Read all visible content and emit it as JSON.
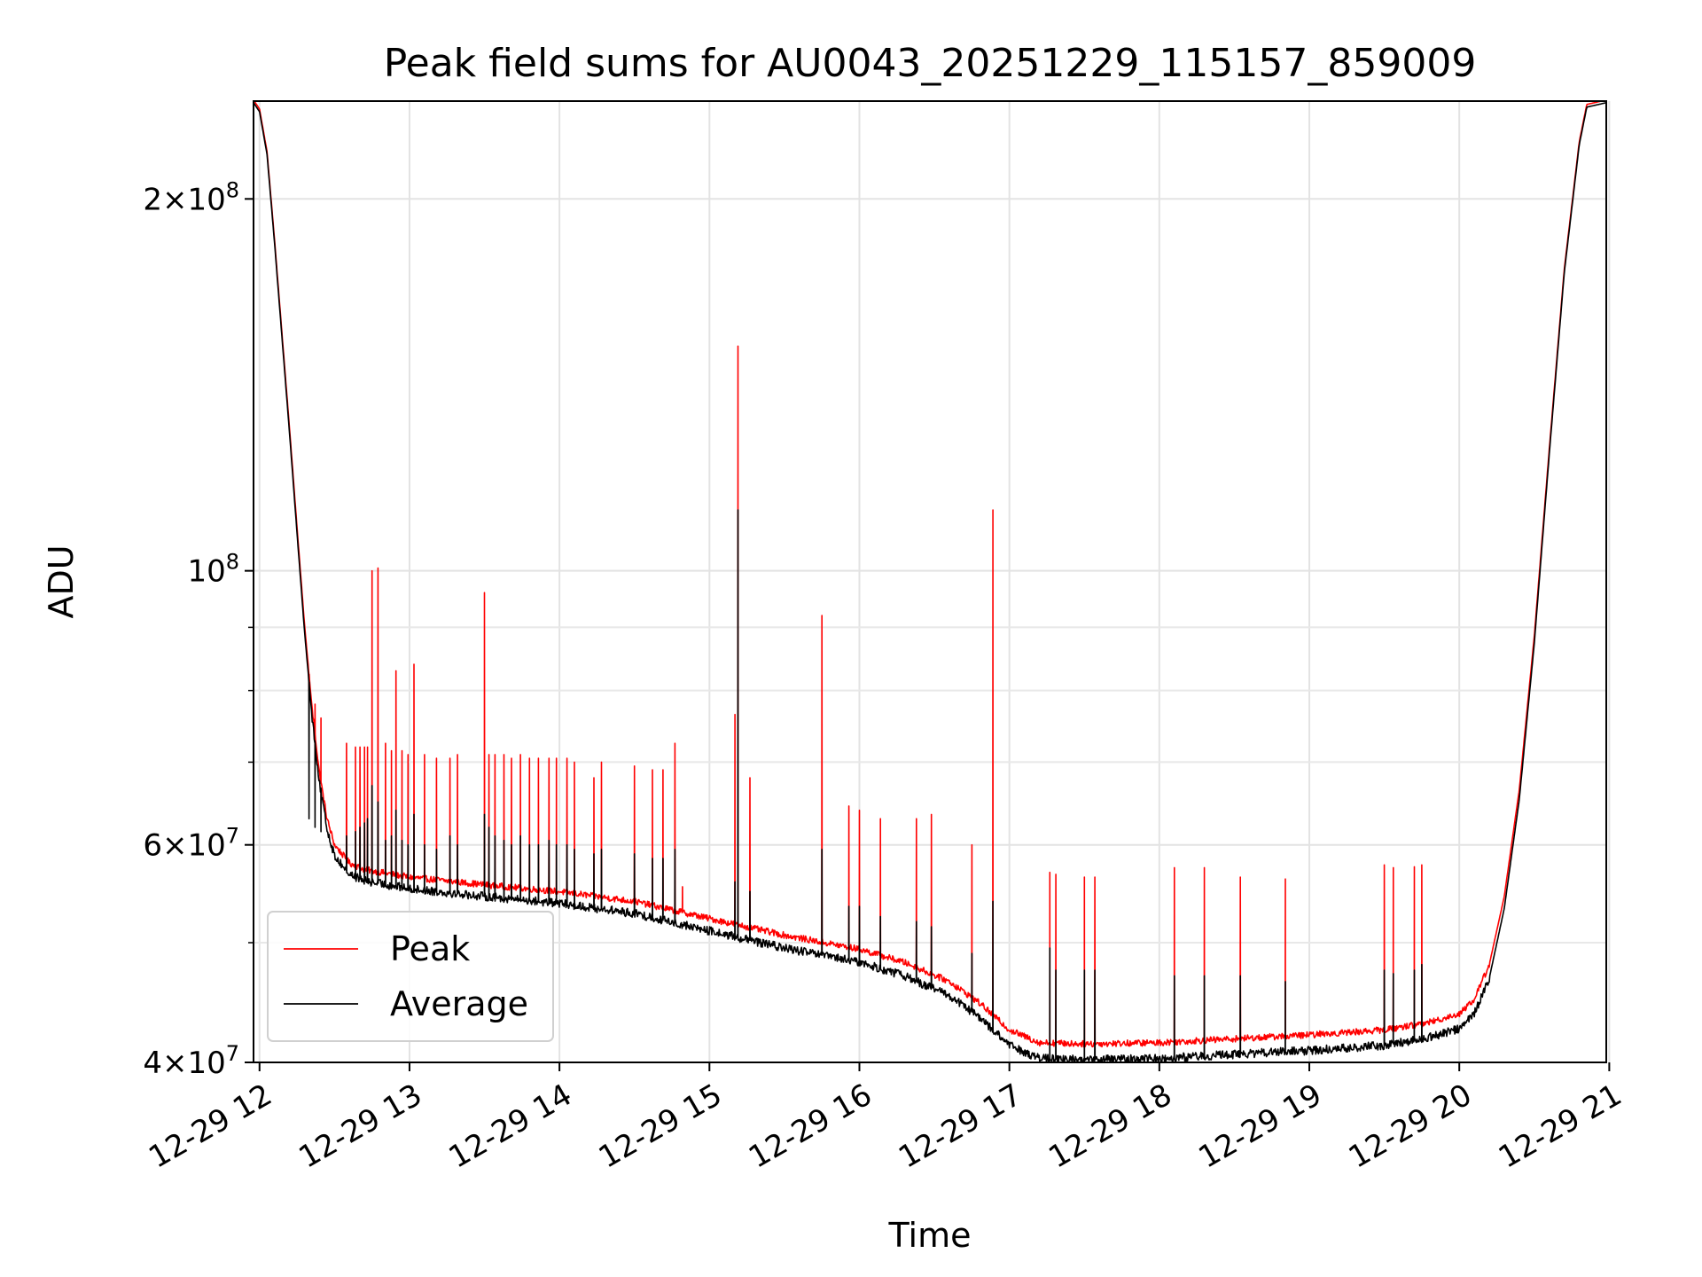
{
  "chart_data": {
    "type": "line",
    "title": "Peak field sums for AU0043_20251229_115157_859009",
    "xlabel": "Time",
    "ylabel": "ADU",
    "yscale": "log",
    "grid": true,
    "legend_position": "lower-left",
    "xlim": [
      11.96,
      20.98
    ],
    "ylim": [
      40000000,
      240000000
    ],
    "x_ticks": [
      {
        "value": 12,
        "label": "12-29 12"
      },
      {
        "value": 13,
        "label": "12-29 13"
      },
      {
        "value": 14,
        "label": "12-29 14"
      },
      {
        "value": 15,
        "label": "12-29 15"
      },
      {
        "value": 16,
        "label": "12-29 16"
      },
      {
        "value": 17,
        "label": "12-29 17"
      },
      {
        "value": 18,
        "label": "12-29 18"
      },
      {
        "value": 19,
        "label": "12-29 19"
      },
      {
        "value": 20,
        "label": "12-29 20"
      },
      {
        "value": 21,
        "label": "12-29 21"
      }
    ],
    "y_major_ticks": [
      {
        "value": 40000000,
        "base": "4",
        "exp": "7"
      },
      {
        "value": 60000000,
        "base": "6",
        "exp": "7"
      },
      {
        "value": 100000000,
        "base": "",
        "exp": "8"
      },
      {
        "value": 200000000,
        "base": "2",
        "exp": "8"
      }
    ],
    "y_minor_gridlines": [
      50000000,
      70000000,
      80000000,
      90000000
    ],
    "baseline": [
      [
        11.96,
        240000000
      ],
      [
        12.0,
        236000000
      ],
      [
        12.05,
        218000000
      ],
      [
        12.1,
        185000000
      ],
      [
        12.15,
        155000000
      ],
      [
        12.2,
        130000000
      ],
      [
        12.25,
        108000000
      ],
      [
        12.3,
        90000000
      ],
      [
        12.35,
        77000000
      ],
      [
        12.4,
        68000000
      ],
      [
        12.45,
        62500000
      ],
      [
        12.5,
        59500000
      ],
      [
        12.6,
        57500000
      ],
      [
        12.7,
        56800000
      ],
      [
        13.0,
        56000000
      ],
      [
        13.5,
        55200000
      ],
      [
        14.0,
        54500000
      ],
      [
        14.5,
        53500000
      ],
      [
        15.0,
        51800000
      ],
      [
        15.5,
        50200000
      ],
      [
        16.0,
        48900000
      ],
      [
        16.3,
        47700000
      ],
      [
        16.6,
        46000000
      ],
      [
        16.8,
        44200000
      ],
      [
        17.0,
        42000000
      ],
      [
        17.2,
        41000000
      ],
      [
        17.5,
        40900000
      ],
      [
        18.0,
        41000000
      ],
      [
        18.5,
        41300000
      ],
      [
        19.0,
        41600000
      ],
      [
        19.5,
        42000000
      ],
      [
        19.8,
        42600000
      ],
      [
        20.0,
        43300000
      ],
      [
        20.1,
        44500000
      ],
      [
        20.2,
        47500000
      ],
      [
        20.3,
        54000000
      ],
      [
        20.4,
        66000000
      ],
      [
        20.5,
        88000000
      ],
      [
        20.6,
        125000000
      ],
      [
        20.7,
        175000000
      ],
      [
        20.8,
        222000000
      ],
      [
        20.85,
        238000000
      ],
      [
        20.98,
        240000000
      ]
    ],
    "series": [
      {
        "name": "Peak",
        "color": "#ff0000",
        "offset": 500000,
        "noise": 0.006,
        "spikes": [
          [
            12.33,
            80000000
          ],
          [
            12.37,
            78000000
          ],
          [
            12.41,
            76000000
          ],
          [
            12.58,
            72500000
          ],
          [
            12.64,
            72000000
          ],
          [
            12.67,
            72000000
          ],
          [
            12.7,
            72000000
          ],
          [
            12.72,
            72000000
          ],
          [
            12.75,
            100000000
          ],
          [
            12.79,
            100500000
          ],
          [
            12.84,
            72500000
          ],
          [
            12.88,
            71500000
          ],
          [
            12.91,
            83000000
          ],
          [
            12.95,
            71500000
          ],
          [
            12.99,
            71000000
          ],
          [
            13.03,
            84000000
          ],
          [
            13.1,
            71000000
          ],
          [
            13.18,
            70500000
          ],
          [
            13.27,
            70500000
          ],
          [
            13.32,
            71000000
          ],
          [
            13.5,
            96000000
          ],
          [
            13.53,
            71000000
          ],
          [
            13.57,
            71000000
          ],
          [
            13.63,
            71000000
          ],
          [
            13.68,
            70500000
          ],
          [
            13.74,
            71000000
          ],
          [
            13.8,
            70500000
          ],
          [
            13.86,
            70500000
          ],
          [
            13.93,
            70500000
          ],
          [
            13.98,
            70500000
          ],
          [
            14.05,
            70500000
          ],
          [
            14.1,
            70000000
          ],
          [
            14.23,
            68000000
          ],
          [
            14.28,
            70000000
          ],
          [
            14.5,
            69500000
          ],
          [
            14.62,
            69000000
          ],
          [
            14.69,
            69000000
          ],
          [
            14.77,
            72500000
          ],
          [
            14.82,
            55500000
          ],
          [
            15.17,
            76500000
          ],
          [
            15.19,
            152000000
          ],
          [
            15.27,
            68000000
          ],
          [
            15.75,
            92000000
          ],
          [
            15.93,
            64500000
          ],
          [
            16.0,
            64000000
          ],
          [
            16.14,
            63000000
          ],
          [
            16.38,
            63000000
          ],
          [
            16.48,
            63500000
          ],
          [
            16.75,
            60000000
          ],
          [
            16.89,
            112000000
          ],
          [
            17.27,
            57000000
          ],
          [
            17.31,
            56800000
          ],
          [
            17.5,
            56500000
          ],
          [
            17.57,
            56500000
          ],
          [
            18.1,
            57500000
          ],
          [
            18.3,
            57500000
          ],
          [
            18.54,
            56500000
          ],
          [
            18.84,
            56300000
          ],
          [
            19.5,
            57800000
          ],
          [
            19.56,
            57500000
          ],
          [
            19.7,
            57600000
          ],
          [
            19.75,
            57800000
          ]
        ]
      },
      {
        "name": "Average",
        "color": "#000000",
        "offset": -700000,
        "noise": 0.008,
        "spikes": [
          [
            12.33,
            63000000
          ],
          [
            12.37,
            62000000
          ],
          [
            12.41,
            61500000
          ],
          [
            12.58,
            61000000
          ],
          [
            12.64,
            61500000
          ],
          [
            12.67,
            62000000
          ],
          [
            12.7,
            62500000
          ],
          [
            12.72,
            63000000
          ],
          [
            12.75,
            67000000
          ],
          [
            12.79,
            65000000
          ],
          [
            12.84,
            60500000
          ],
          [
            12.88,
            61000000
          ],
          [
            12.91,
            64000000
          ],
          [
            12.95,
            60500000
          ],
          [
            12.99,
            60000000
          ],
          [
            13.03,
            63500000
          ],
          [
            13.1,
            60000000
          ],
          [
            13.18,
            59500000
          ],
          [
            13.27,
            61000000
          ],
          [
            13.32,
            60000000
          ],
          [
            13.5,
            63500000
          ],
          [
            13.53,
            62000000
          ],
          [
            13.57,
            61000000
          ],
          [
            13.63,
            60500000
          ],
          [
            13.68,
            60000000
          ],
          [
            13.74,
            61000000
          ],
          [
            13.8,
            60000000
          ],
          [
            13.86,
            60000000
          ],
          [
            13.93,
            60500000
          ],
          [
            13.98,
            60000000
          ],
          [
            14.05,
            60000000
          ],
          [
            14.1,
            59500000
          ],
          [
            14.23,
            59000000
          ],
          [
            14.28,
            59500000
          ],
          [
            14.5,
            59000000
          ],
          [
            14.62,
            58500000
          ],
          [
            14.69,
            58500000
          ],
          [
            14.77,
            59500000
          ],
          [
            15.17,
            56000000
          ],
          [
            15.19,
            112000000
          ],
          [
            15.27,
            55000000
          ],
          [
            15.75,
            59500000
          ],
          [
            15.93,
            53500000
          ],
          [
            16.0,
            53500000
          ],
          [
            16.14,
            52500000
          ],
          [
            16.38,
            52000000
          ],
          [
            16.48,
            51500000
          ],
          [
            16.75,
            49000000
          ],
          [
            16.89,
            54000000
          ],
          [
            17.27,
            49500000
          ],
          [
            17.31,
            47500000
          ],
          [
            17.5,
            47500000
          ],
          [
            17.57,
            47500000
          ],
          [
            18.1,
            47000000
          ],
          [
            18.3,
            47000000
          ],
          [
            18.54,
            47000000
          ],
          [
            18.84,
            46500000
          ],
          [
            19.5,
            47500000
          ],
          [
            19.56,
            47200000
          ],
          [
            19.7,
            47500000
          ],
          [
            19.75,
            48000000
          ]
        ]
      }
    ]
  }
}
